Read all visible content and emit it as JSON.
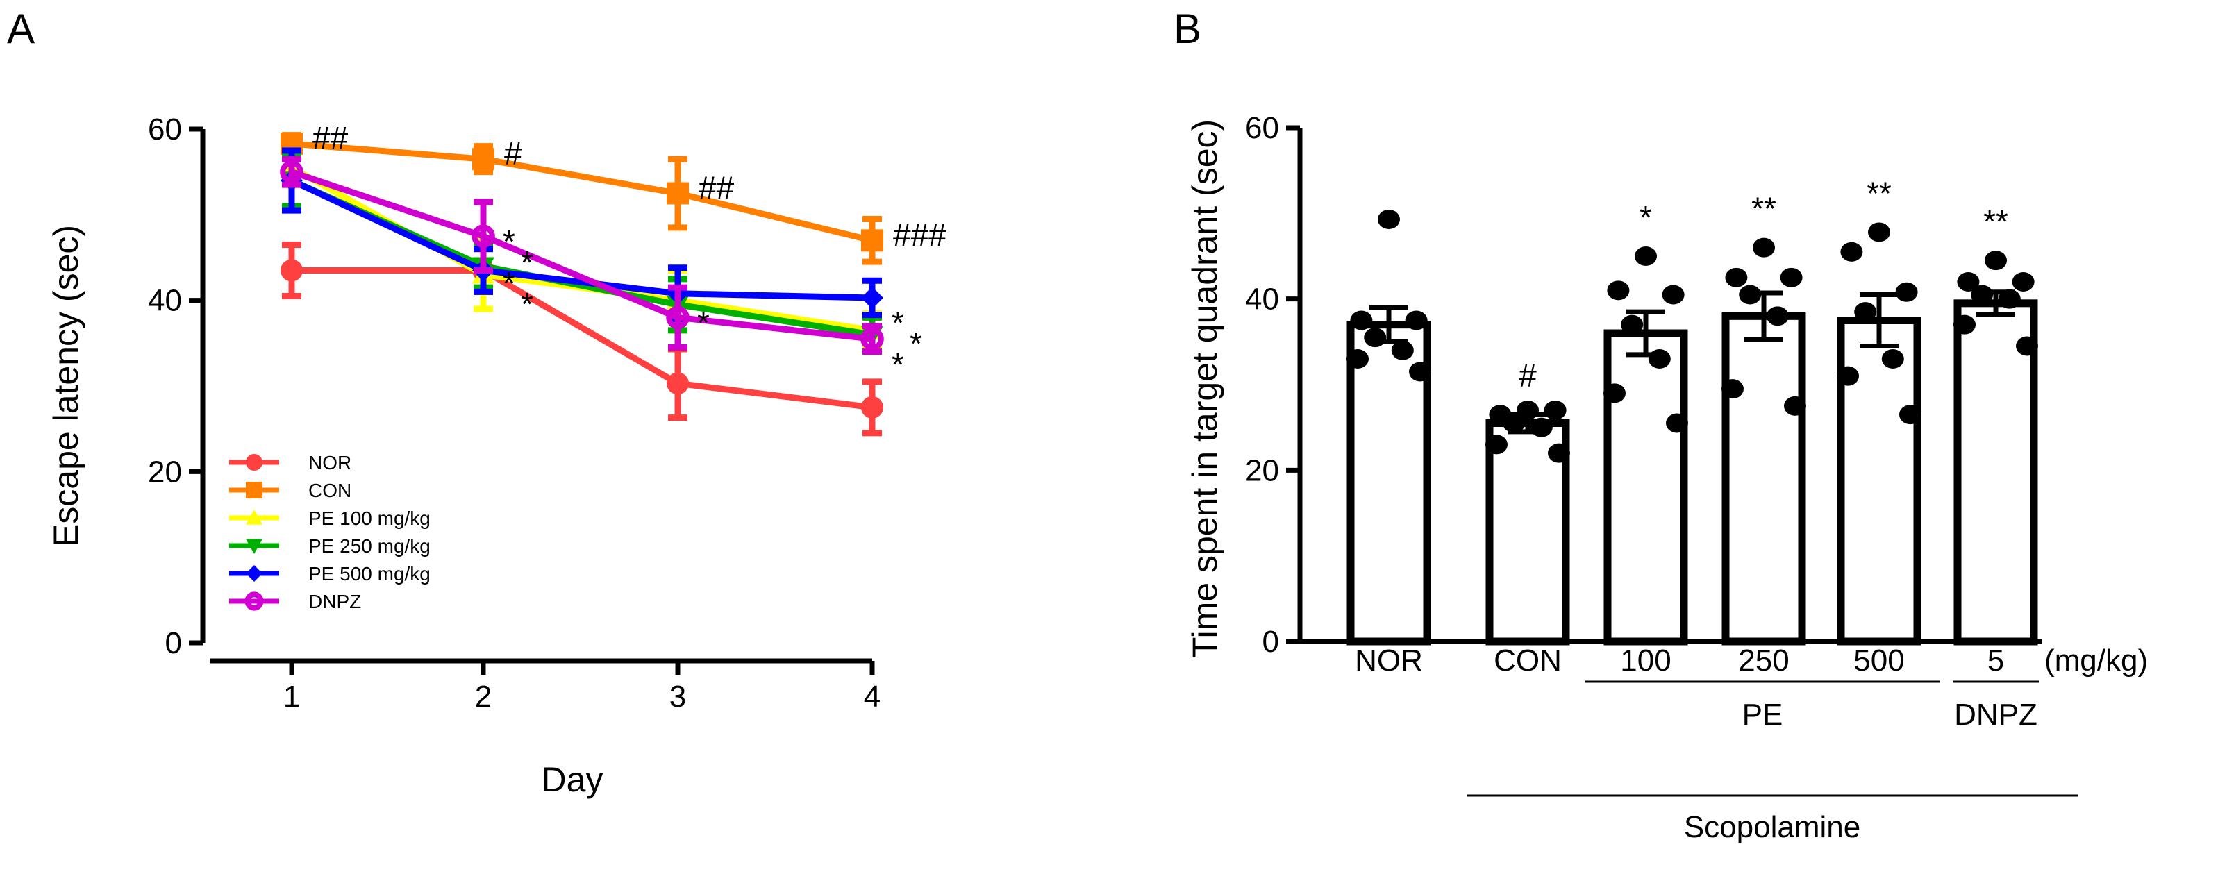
{
  "chart_data": [
    {
      "panel": "A",
      "type": "line",
      "xlabel": "Day",
      "ylabel": "Escape latency (sec)",
      "x": [
        1,
        2,
        3,
        4
      ],
      "xticks": [
        "1",
        "2",
        "3",
        "4"
      ],
      "ylim": [
        0,
        60
      ],
      "yticks": [
        "0",
        "20",
        "40",
        "60"
      ],
      "legend_position": "bottom-left",
      "grid": false,
      "series": [
        {
          "name": "NOR",
          "color": "#ff4040",
          "marker": "circle",
          "values": [
            43.5,
            43.5,
            30.3,
            27.5
          ],
          "sem": [
            3,
            2.5,
            4,
            3
          ]
        },
        {
          "name": "CON",
          "color": "#ff8000",
          "marker": "square",
          "values": [
            58.3,
            56.5,
            52.5,
            47
          ],
          "sem": [
            1,
            1.5,
            4,
            2.5
          ]
        },
        {
          "name": "PE 100 mg/kg",
          "color": "#ffff00",
          "marker": "triangle-up",
          "values": [
            55.5,
            43,
            40,
            36.5
          ],
          "sem": [
            2,
            4,
            3.5,
            2
          ]
        },
        {
          "name": "PE 250 mg/kg",
          "color": "#00b000",
          "marker": "triangle-down",
          "values": [
            54,
            44,
            39.5,
            36
          ],
          "sem": [
            3,
            2.5,
            3,
            2
          ]
        },
        {
          "name": "PE 500 mg/kg",
          "color": "#0000ff",
          "marker": "diamond",
          "values": [
            54,
            43.5,
            40.8,
            40.3
          ],
          "sem": [
            3.5,
            2.5,
            3,
            2
          ]
        },
        {
          "name": "DNPZ",
          "color": "#d000d0",
          "marker": "open-circle",
          "values": [
            55,
            47.5,
            38,
            35.5
          ],
          "sem": [
            1.5,
            4,
            3.5,
            1.5
          ]
        }
      ],
      "annotations": [
        {
          "text": "##",
          "x": 1,
          "y": 58.3
        },
        {
          "text": "#",
          "x": 2,
          "y": 56.5
        },
        {
          "text": "##",
          "x": 3,
          "y": 52.5
        },
        {
          "text": "###",
          "x": 4,
          "y": 47
        },
        {
          "text": "*",
          "x": 2,
          "y": 48
        },
        {
          "text": "*",
          "x": 2,
          "y": 46
        },
        {
          "text": "*",
          "x": 2,
          "y": 44
        },
        {
          "text": "*",
          "x": 2,
          "y": 41.5
        },
        {
          "text": "*",
          "x": 3,
          "y": 38.5
        },
        {
          "text": "*",
          "x": 4,
          "y": 38.5
        },
        {
          "text": "*",
          "x": 4,
          "y": 36.5
        },
        {
          "text": "*",
          "x": 4,
          "y": 34.5
        }
      ]
    },
    {
      "panel": "B",
      "type": "bar",
      "ylabel": "Time spent in target quadrant (sec)",
      "categories": [
        "NOR",
        "CON",
        "100",
        "250",
        "500",
        "5"
      ],
      "unit_label": "(mg/kg)",
      "ylim": [
        0,
        60
      ],
      "yticks": [
        "0",
        "20",
        "40",
        "60"
      ],
      "values": [
        37,
        25.5,
        36,
        38,
        37.5,
        39.5
      ],
      "sem": [
        2,
        1,
        2.5,
        2.7,
        3,
        1.3
      ],
      "points": [
        [
          49.3,
          37.5,
          37.5,
          35.5,
          34,
          33,
          31.5
        ],
        [
          27,
          26.5,
          27,
          25.5,
          25,
          23,
          22
        ],
        [
          45,
          41,
          40.5,
          37,
          33,
          29,
          25.5
        ],
        [
          46,
          42.5,
          42.5,
          40.5,
          38,
          29.5,
          27.5
        ],
        [
          47.8,
          45.5,
          40.8,
          38.5,
          33,
          31,
          26.5
        ],
        [
          44.5,
          42,
          42,
          40.5,
          40,
          37,
          34.5
        ]
      ],
      "significance": [
        "",
        "#",
        "*",
        "**",
        "**",
        "**"
      ],
      "groups": [
        {
          "label": "PE",
          "from": 2,
          "to": 4
        },
        {
          "label": "DNPZ",
          "from": 5,
          "to": 5
        },
        {
          "label": "Scopolamine",
          "from": 1,
          "to": 5
        }
      ]
    }
  ],
  "panels": {
    "a_label": "A",
    "b_label": "B"
  }
}
